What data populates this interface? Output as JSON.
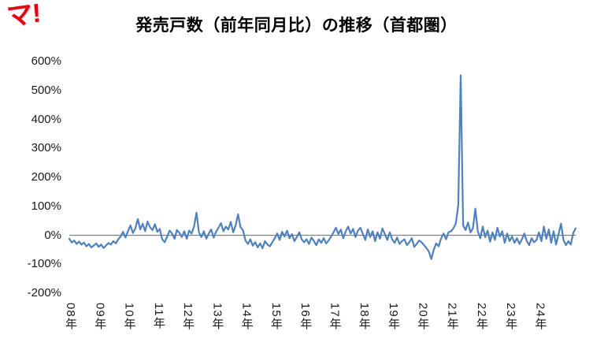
{
  "logo": {
    "text": "マ!",
    "color": "#e60012"
  },
  "chart_data": {
    "type": "line",
    "title": "発売戸数（前年同月比）の推移（首都圏）",
    "xlabel": "",
    "ylabel": "",
    "ylim": [
      -200,
      600
    ],
    "ytick_step": 100,
    "ytick_labels": [
      "600%",
      "500%",
      "400%",
      "300%",
      "200%",
      "100%",
      "0%",
      "-100%",
      "-200%"
    ],
    "grid": false,
    "legend": false,
    "axis_color": "#808080",
    "x_frequency": "monthly",
    "x_start": "2008-01",
    "x_end": "2025-04",
    "x_tick_labels": [
      "08年",
      "09年",
      "10年",
      "11年",
      "12年",
      "13年",
      "14年",
      "15年",
      "16年",
      "17年",
      "18年",
      "19年",
      "20年",
      "21年",
      "22年",
      "23年",
      "24年"
    ],
    "x_tick_month_indices": [
      0,
      12,
      24,
      36,
      48,
      60,
      72,
      84,
      96,
      108,
      120,
      132,
      144,
      156,
      168,
      180,
      192
    ],
    "series": [
      {
        "name": "発売戸数 前年同月比",
        "color": "#4F81BD",
        "values": [
          -12,
          -25,
          -18,
          -30,
          -22,
          -32,
          -25,
          -38,
          -30,
          -42,
          -35,
          -28,
          -40,
          -32,
          -44,
          -35,
          -27,
          -32,
          -20,
          -28,
          -14,
          -4,
          12,
          -8,
          15,
          34,
          8,
          24,
          56,
          20,
          40,
          14,
          48,
          28,
          18,
          38,
          12,
          22,
          -14,
          -24,
          -4,
          16,
          6,
          -12,
          18,
          8,
          -6,
          14,
          -12,
          16,
          6,
          30,
          78,
          10,
          -6,
          14,
          -12,
          6,
          20,
          -8,
          12,
          26,
          42,
          14,
          30,
          20,
          46,
          10,
          34,
          72,
          28,
          18,
          -18,
          -30,
          -14,
          -36,
          -24,
          -42,
          -28,
          -45,
          -20,
          -32,
          -38,
          -24,
          -10,
          6,
          -16,
          12,
          -4,
          16,
          -10,
          4,
          -20,
          -6,
          10,
          -14,
          -24,
          -14,
          -30,
          -8,
          -20,
          -34,
          -14,
          -26,
          -10,
          -28,
          -18,
          -4,
          10,
          26,
          4,
          20,
          -10,
          14,
          30,
          6,
          22,
          -6,
          16,
          26,
          4,
          -16,
          20,
          -6,
          14,
          -20,
          10,
          -12,
          24,
          4,
          -16,
          10,
          -14,
          -26,
          -8,
          -30,
          -20,
          -14,
          -34,
          -24,
          -10,
          -40,
          -30,
          -18,
          -24,
          -34,
          -44,
          -56,
          -82,
          -50,
          -28,
          -38,
          -10,
          6,
          -14,
          10,
          14,
          24,
          40,
          104,
          552,
          34,
          18,
          44,
          10,
          24,
          92,
          14,
          -10,
          30,
          -6,
          16,
          -22,
          10,
          -16,
          26,
          -4,
          14,
          -26,
          6,
          -20,
          -4,
          -26,
          -10,
          -30,
          -14,
          6,
          -20,
          -34,
          -10,
          -24,
          -16,
          10,
          -20,
          30,
          -12,
          20,
          -26,
          14,
          -32,
          4,
          40,
          -16,
          -34,
          -20,
          -32,
          8,
          24
        ]
      }
    ]
  }
}
